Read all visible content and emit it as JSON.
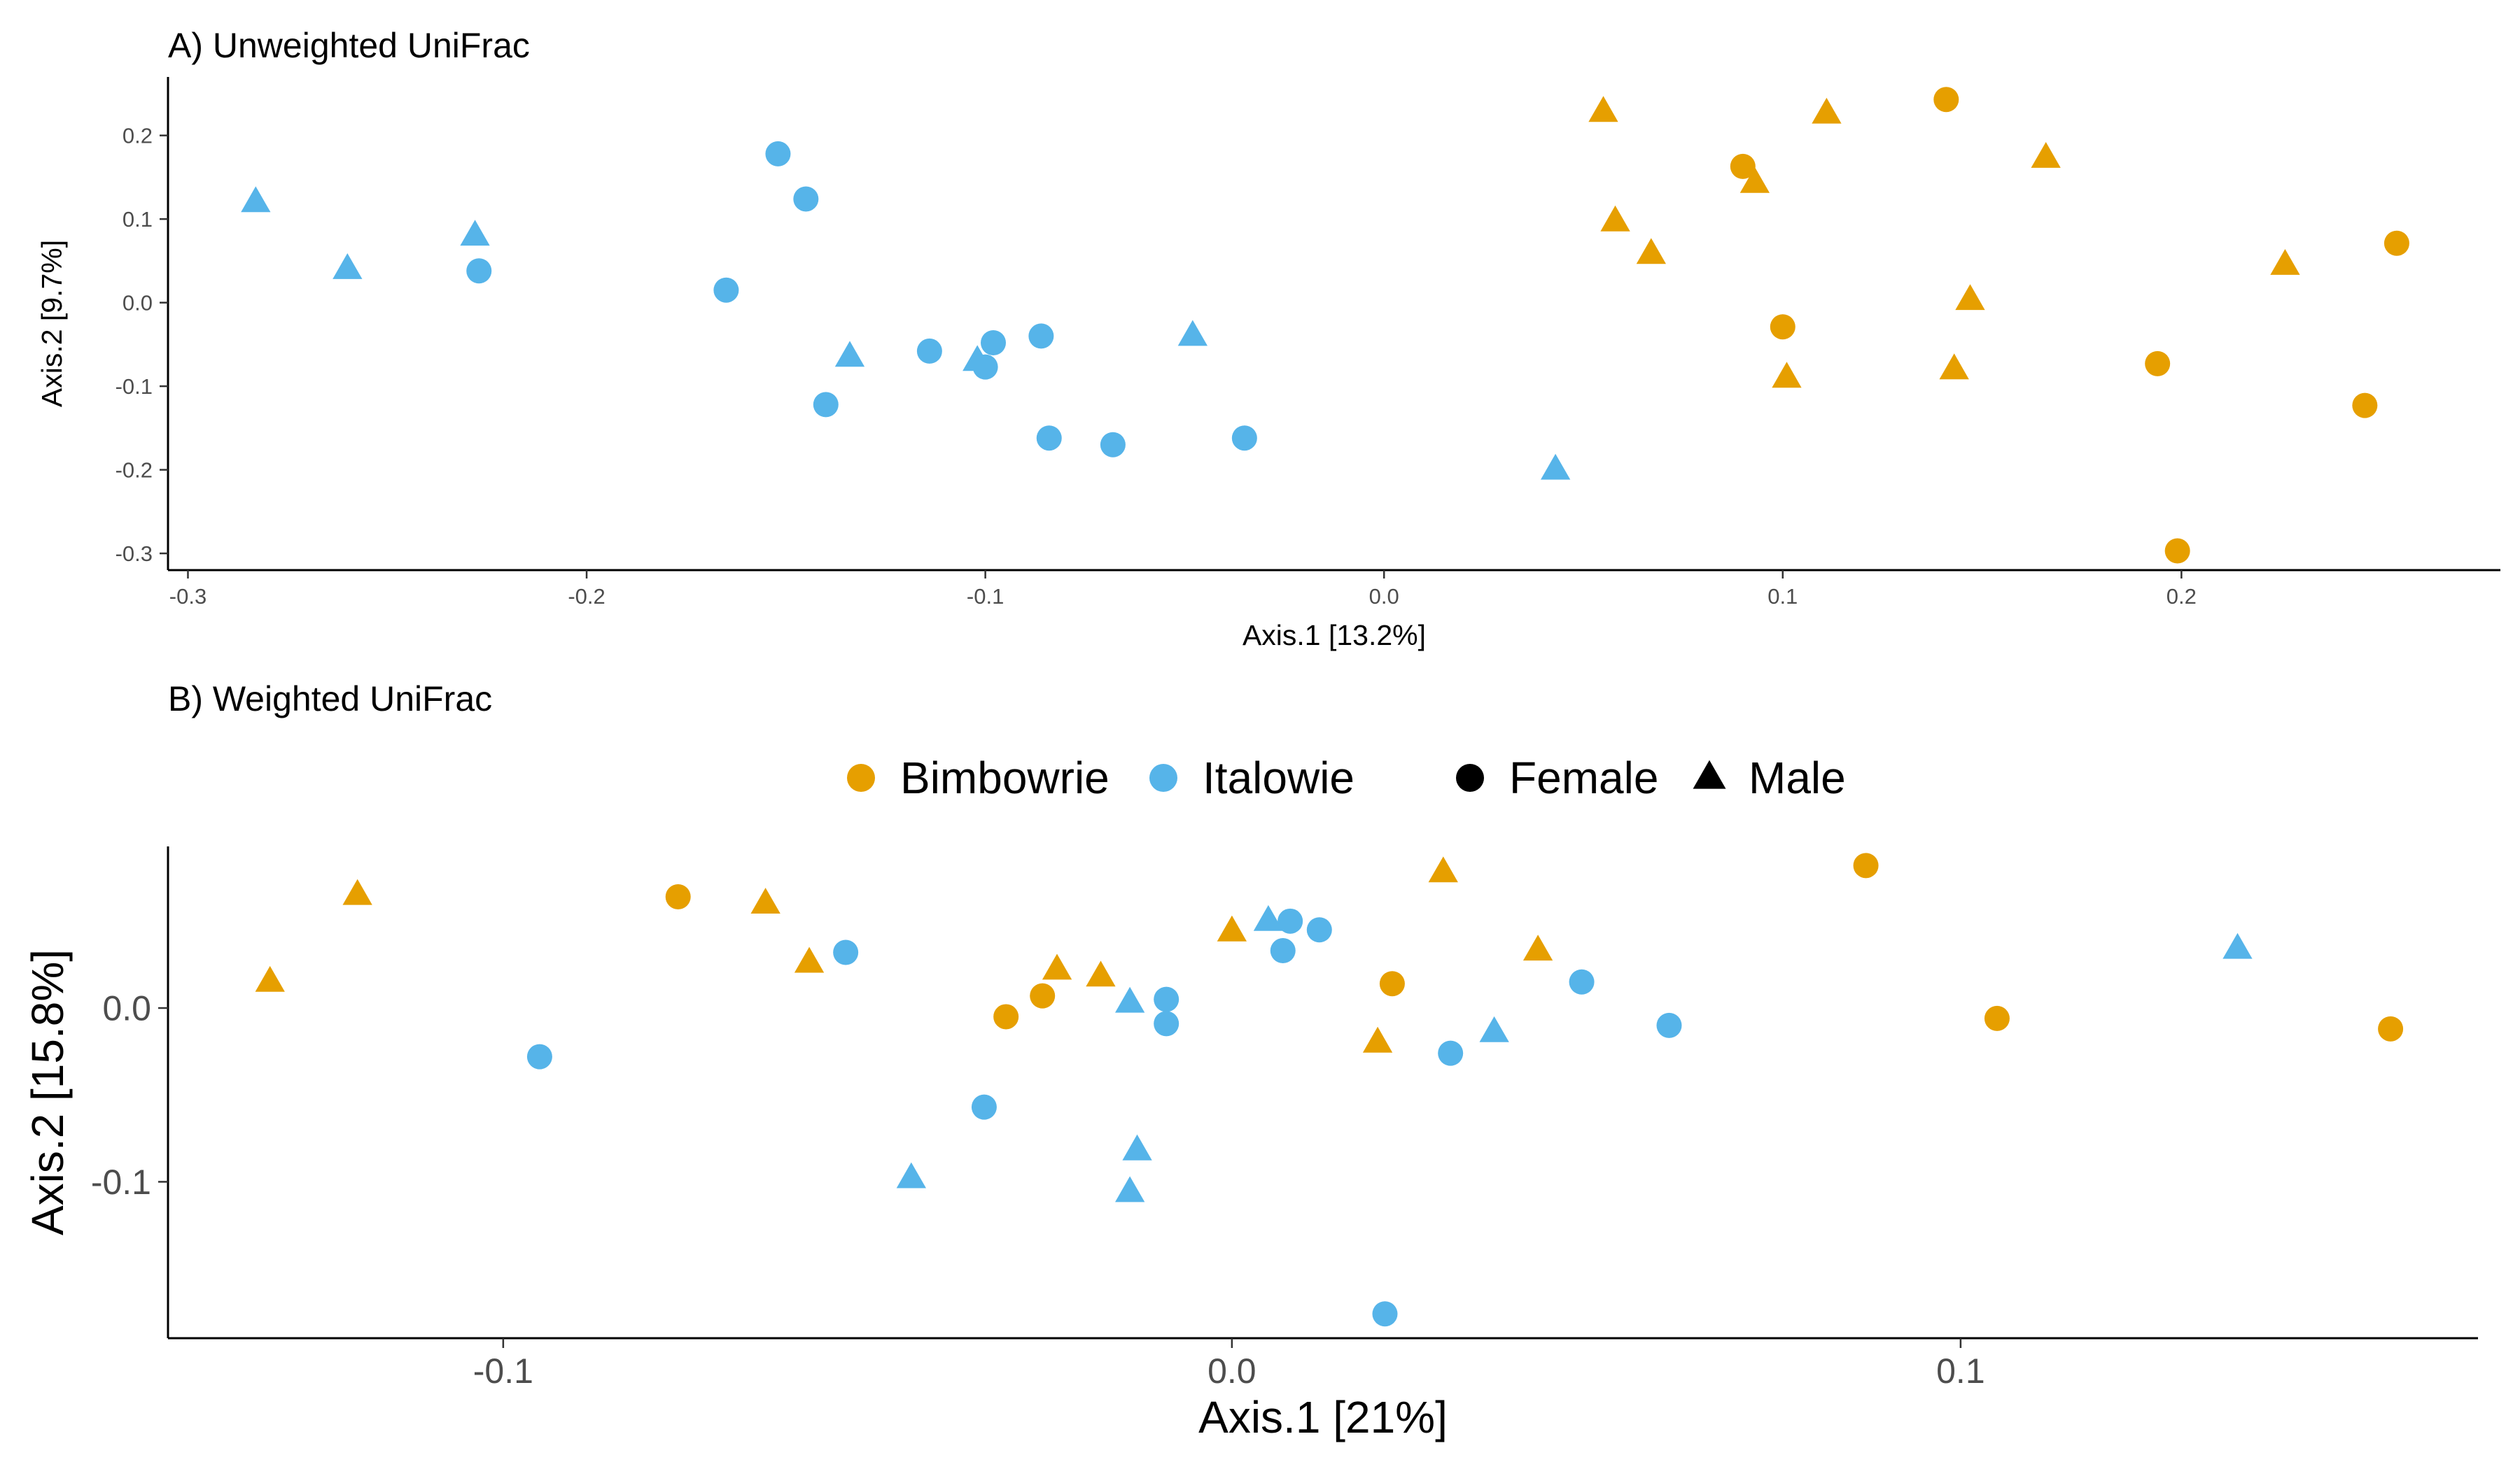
{
  "legend": {
    "groups": [
      {
        "label": "Bimbowrie",
        "color": "#E69F00"
      },
      {
        "label": "Italowie",
        "color": "#56B4E9"
      }
    ],
    "shapes": [
      {
        "label": "Female",
        "shape": "circle"
      },
      {
        "label": "Male",
        "shape": "triangle"
      }
    ]
  },
  "chart_data": [
    {
      "type": "scatter",
      "title": "A) Unweighted UniFrac",
      "xlabel": "Axis.1   [13.2%]",
      "ylabel": "Axis.2   [9.7%]",
      "xlim": [
        -0.305,
        0.28
      ],
      "ylim": [
        -0.32,
        0.27
      ],
      "xticks": [
        -0.3,
        -0.2,
        -0.1,
        0.0,
        0.1,
        0.2
      ],
      "yticks": [
        -0.3,
        -0.2,
        -0.1,
        0.0,
        0.1,
        0.2
      ],
      "series": [
        {
          "name": "Italowie",
          "shape": "circle",
          "points": [
            [
              -0.152,
              0.178
            ],
            [
              -0.145,
              0.124
            ],
            [
              -0.227,
              0.038
            ],
            [
              -0.165,
              0.015
            ],
            [
              -0.114,
              -0.058
            ],
            [
              -0.098,
              -0.048
            ],
            [
              -0.1,
              -0.077
            ],
            [
              -0.086,
              -0.04
            ],
            [
              -0.14,
              -0.122
            ],
            [
              -0.084,
              -0.162
            ],
            [
              -0.068,
              -0.17
            ],
            [
              -0.035,
              -0.162
            ]
          ]
        },
        {
          "name": "Italowie",
          "shape": "triangle",
          "points": [
            [
              -0.283,
              0.12
            ],
            [
              -0.26,
              0.04
            ],
            [
              -0.228,
              0.08
            ],
            [
              -0.134,
              -0.065
            ],
            [
              -0.102,
              -0.07
            ],
            [
              -0.048,
              -0.04
            ],
            [
              0.043,
              -0.2
            ]
          ]
        },
        {
          "name": "Bimbowrie",
          "shape": "circle",
          "points": [
            [
              0.141,
              0.243
            ],
            [
              0.09,
              0.163
            ],
            [
              0.254,
              0.071
            ],
            [
              0.1,
              -0.029
            ],
            [
              0.194,
              -0.073
            ],
            [
              0.246,
              -0.123
            ],
            [
              0.199,
              -0.297
            ]
          ]
        },
        {
          "name": "Bimbowrie",
          "shape": "triangle",
          "points": [
            [
              0.055,
              0.228
            ],
            [
              0.111,
              0.226
            ],
            [
              0.166,
              0.173
            ],
            [
              0.093,
              0.143
            ],
            [
              0.058,
              0.097
            ],
            [
              0.067,
              0.058
            ],
            [
              0.226,
              0.045
            ],
            [
              0.147,
              0.003
            ],
            [
              0.101,
              -0.09
            ],
            [
              0.143,
              -0.08
            ]
          ]
        }
      ]
    },
    {
      "type": "scatter",
      "title": "B) Weighted UniFrac",
      "xlabel": "Axis.1   [21%]",
      "ylabel": "Axis.2   [15.8%]",
      "xlim": [
        -0.146,
        0.171
      ],
      "ylim": [
        -0.19,
        0.093
      ],
      "xticks": [
        -0.1,
        0.0,
        0.1
      ],
      "yticks": [
        -0.1,
        0.0
      ],
      "series": [
        {
          "name": "Bimbowrie",
          "shape": "circle",
          "points": [
            [
              0.087,
              0.082
            ],
            [
              -0.076,
              0.064
            ],
            [
              0.022,
              0.014
            ],
            [
              -0.026,
              0.007
            ],
            [
              -0.031,
              -0.005
            ],
            [
              0.105,
              -0.006
            ],
            [
              0.159,
              -0.012
            ]
          ]
        },
        {
          "name": "Bimbowrie",
          "shape": "triangle",
          "points": [
            [
              -0.12,
              0.065
            ],
            [
              -0.064,
              0.06
            ],
            [
              0.029,
              0.078
            ],
            [
              0.0,
              0.044
            ],
            [
              -0.058,
              0.026
            ],
            [
              -0.024,
              0.022
            ],
            [
              -0.018,
              0.018
            ],
            [
              0.042,
              0.033
            ],
            [
              0.02,
              -0.02
            ],
            [
              -0.132,
              0.015
            ]
          ]
        },
        {
          "name": "Italowie",
          "shape": "circle",
          "points": [
            [
              -0.053,
              0.032
            ],
            [
              0.008,
              0.05
            ],
            [
              0.012,
              0.045
            ],
            [
              0.007,
              0.033
            ],
            [
              -0.009,
              0.005
            ],
            [
              -0.009,
              -0.009
            ],
            [
              0.048,
              0.015
            ],
            [
              0.06,
              -0.01
            ],
            [
              0.03,
              -0.026
            ],
            [
              -0.095,
              -0.028
            ],
            [
              -0.034,
              -0.057
            ],
            [
              0.021,
              -0.176
            ]
          ]
        },
        {
          "name": "Italowie",
          "shape": "triangle",
          "points": [
            [
              0.005,
              0.05
            ],
            [
              -0.014,
              0.003
            ],
            [
              0.036,
              -0.014
            ],
            [
              0.138,
              0.034
            ],
            [
              -0.013,
              -0.082
            ],
            [
              -0.044,
              -0.098
            ],
            [
              -0.014,
              -0.106
            ]
          ]
        }
      ]
    }
  ]
}
